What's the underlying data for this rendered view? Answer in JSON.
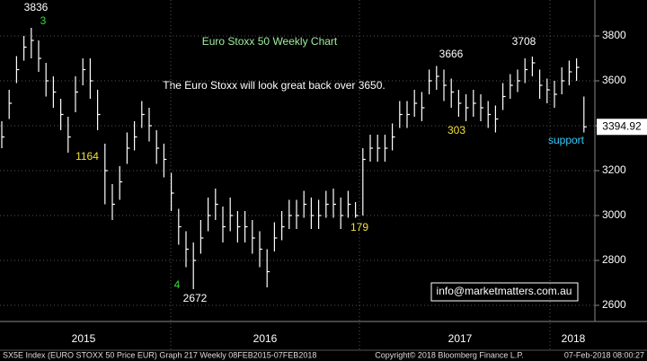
{
  "chart_data": {
    "type": "ohlc",
    "title": "Euro Stoxx 50 Weekly Chart",
    "subtitle": "The Euro Stoxx will look great back over 3650.",
    "series": [
      {
        "color": "#ffffff",
        "high": [
          3420,
          3560,
          3710,
          3800,
          3836,
          3780,
          3680,
          3620,
          3520,
          3440,
          3620,
          3700,
          3700,
          3560,
          3320,
          3140,
          3220,
          3370,
          3420,
          3510,
          3480,
          3380,
          3320,
          3190,
          3030,
          2930,
          2880,
          2980,
          3080,
          3120,
          3040,
          3080,
          3020,
          3020,
          2980,
          2930,
          2850,
          2970,
          3020,
          3070,
          3070,
          3110,
          3080,
          3070,
          3110,
          3120,
          3080,
          3110,
          3060,
          3300,
          3360,
          3360,
          3360,
          3410,
          3510,
          3510,
          3560,
          3550,
          3650,
          3666,
          3650,
          3610,
          3560,
          3540,
          3560,
          3540,
          3510,
          3490,
          3590,
          3630,
          3650,
          3700,
          3708,
          3650,
          3610,
          3600,
          3660,
          3690,
          3700,
          3530
        ],
        "low": [
          3300,
          3430,
          3590,
          3690,
          3700,
          3640,
          3530,
          3480,
          3380,
          3280,
          3460,
          3580,
          3520,
          3380,
          3050,
          2980,
          3070,
          3230,
          3290,
          3390,
          3330,
          3230,
          3170,
          3020,
          2870,
          2770,
          2672,
          2830,
          2930,
          2980,
          2880,
          2930,
          2880,
          2880,
          2830,
          2770,
          2680,
          2840,
          2890,
          2940,
          2940,
          2990,
          2940,
          2940,
          2990,
          2990,
          2940,
          2990,
          2990,
          3000,
          3240,
          3240,
          3240,
          3290,
          3390,
          3390,
          3440,
          3420,
          3540,
          3560,
          3510,
          3480,
          3440,
          3420,
          3440,
          3420,
          3390,
          3370,
          3470,
          3520,
          3550,
          3590,
          3620,
          3520,
          3500,
          3480,
          3540,
          3580,
          3600,
          3370
        ],
        "close": [
          3350,
          3500,
          3650,
          3750,
          3780,
          3700,
          3600,
          3550,
          3450,
          3350,
          3550,
          3650,
          3600,
          3450,
          3200,
          3050,
          3150,
          3300,
          3350,
          3450,
          3400,
          3300,
          3250,
          3100,
          2950,
          2850,
          2800,
          2900,
          3000,
          3050,
          2950,
          3000,
          2950,
          2950,
          2900,
          2850,
          2750,
          2900,
          2950,
          3000,
          3000,
          3050,
          3000,
          3000,
          3050,
          3050,
          3000,
          3050,
          3000,
          3250,
          3300,
          3300,
          3300,
          3350,
          3450,
          3450,
          3500,
          3480,
          3600,
          3620,
          3580,
          3550,
          3500,
          3480,
          3500,
          3480,
          3450,
          3430,
          3530,
          3580,
          3600,
          3650,
          3680,
          3580,
          3560,
          3540,
          3600,
          3640,
          3660,
          3394.92
        ]
      }
    ],
    "ylim": [
      2528,
      3960
    ],
    "yticks": [
      2600,
      2800,
      3000,
      3200,
      3400,
      3600,
      3800
    ],
    "grid": true,
    "x_labels": [
      "2015",
      "2016",
      "2017",
      "2018"
    ],
    "annotations": [
      {
        "text": "3",
        "color": "#33dd33"
      },
      {
        "text": "1164",
        "color": "#f2e033"
      },
      {
        "text": "4",
        "color": "#33dd33"
      },
      {
        "text": "179",
        "color": "#f2e033"
      },
      {
        "text": "303",
        "color": "#f2e033"
      },
      {
        "text": "support",
        "color": "#33ccff"
      }
    ],
    "email": "info@marketmatters.com.au",
    "footer": {
      "left": "SX5E Index (EURO STOXX 50 Price EUR) Graph 217  Weekly 08FEB2015-07FEB2018",
      "center": "Copyright© 2018 Bloomberg Finance L.P.",
      "right": "07-Feb-2018 08:00:27"
    }
  }
}
